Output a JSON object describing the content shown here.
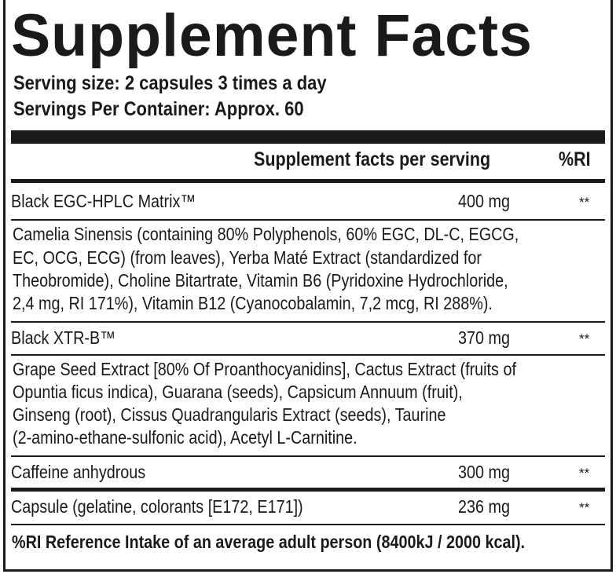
{
  "title": "Supplement Facts",
  "serving_size": "Serving size: 2 capsules 3 times a day",
  "servings_per_container": "Servings Per Container: Approx. 60",
  "header": {
    "per_serving": "Supplement facts per serving",
    "ri": "%RI"
  },
  "rows": [
    {
      "name": "Black EGC-HPLC Matrix™",
      "amount": "400 mg",
      "ri": "**",
      "description": [
        "Camelia Sinensis (containing 80% Polyphenols, 60% EGC, DL-C, EGCG,",
        "EC, OCG, ECG) (from leaves), Yerba Maté Extract (standardized for",
        "Theobromide), Choline Bitartrate, Vitamin B6 (Pyridoxine Hydrochloride,",
        "2,4 mg, RI 171%), Vitamin B12 (Cyanocobalamin, 7,2 mcg, RI 288%)."
      ]
    },
    {
      "name": "Black XTR-B™",
      "amount": "370 mg",
      "ri": "**",
      "description": [
        "Grape Seed Extract [80% Of Proanthocyanidins], Cactus Extract (fruits of",
        "Opuntia ficus indica), Guarana (seeds), Capsicum Annuum (fruit),",
        "Ginseng (root), Cissus Quadrangularis Extract (seeds), Taurine",
        "(2-amino-ethane-sulfonic acid), Acetyl L-Carnitine."
      ]
    },
    {
      "name": "Caffeine anhydrous",
      "amount": "300 mg",
      "ri": "**"
    },
    {
      "name": "Capsule (gelatine, colorants [E172, E171])",
      "amount": "236 mg",
      "ri": "**"
    }
  ],
  "footnote": "%RI Reference Intake of an average adult person (8400kJ / 2000 kcal)."
}
